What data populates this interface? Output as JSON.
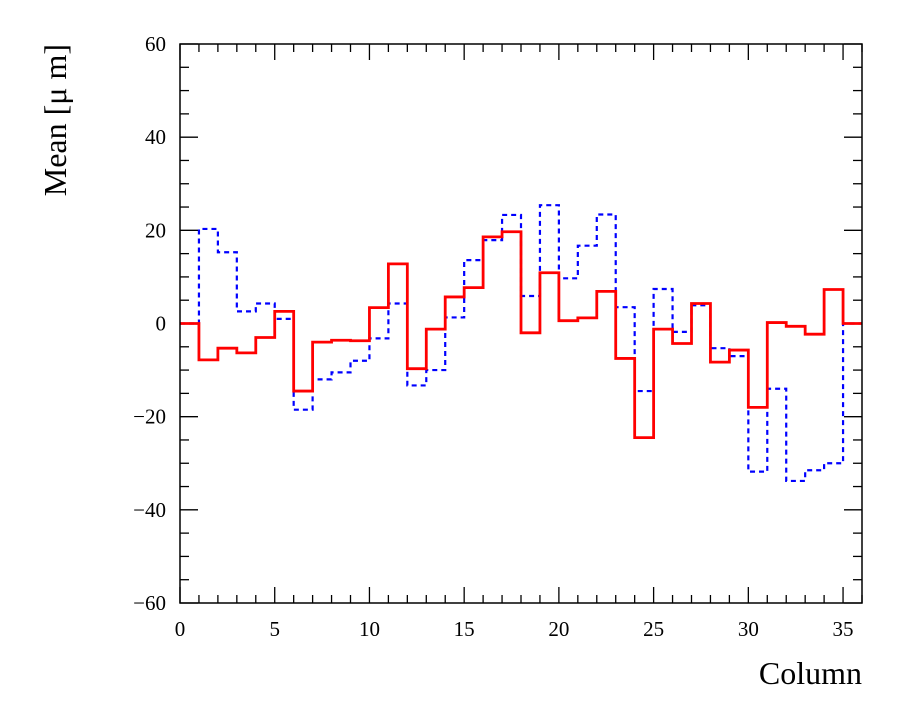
{
  "chart_data": {
    "type": "line",
    "subtype": "step-histogram",
    "title": "",
    "xlabel": "Column",
    "ylabel": "Mean [μ m]",
    "xlim": [
      0,
      36
    ],
    "ylim": [
      -60,
      60
    ],
    "x_ticks": [
      0,
      5,
      10,
      15,
      20,
      25,
      30,
      35
    ],
    "y_ticks": [
      -60,
      -40,
      -20,
      0,
      20,
      40,
      60
    ],
    "grid": false,
    "legend": "none",
    "bin_edges": [
      0,
      1,
      2,
      3,
      4,
      5,
      6,
      7,
      8,
      9,
      10,
      11,
      12,
      13,
      14,
      15,
      16,
      17,
      18,
      19,
      20,
      21,
      22,
      23,
      24,
      25,
      26,
      27,
      28,
      29,
      30,
      31,
      32,
      33,
      34,
      35,
      36
    ],
    "series": [
      {
        "style": "solid",
        "color": "#ff0000",
        "values": [
          0,
          -7.8,
          -5.3,
          -6.3,
          -3.0,
          2.6,
          -14.5,
          -4.0,
          -3.6,
          -3.7,
          3.4,
          12.8,
          -9.7,
          -1.2,
          5.7,
          7.7,
          18.6,
          19.7,
          -2.0,
          10.9,
          0.6,
          1.2,
          6.9,
          -7.5,
          -24.5,
          -1.2,
          -4.3,
          4.3,
          -8.3,
          -5.7,
          -18.0,
          0.2,
          -0.6,
          -2.3,
          7.3,
          0
        ]
      },
      {
        "style": "dotted",
        "color": "#0000ff",
        "values": [
          0,
          20.3,
          15.3,
          2.6,
          4.3,
          1.0,
          -18.5,
          -12.0,
          -10.5,
          -8.0,
          -3.2,
          4.3,
          -13.3,
          -10.0,
          1.3,
          13.6,
          17.9,
          23.3,
          5.9,
          25.4,
          9.7,
          16.7,
          23.4,
          3.5,
          -14.5,
          7.4,
          -1.8,
          3.9,
          -5.3,
          -7.0,
          -31.8,
          -14.0,
          -33.8,
          -31.5,
          -30.0,
          0
        ]
      }
    ]
  },
  "colors": {
    "background": "#ffffff",
    "axis": "#000000"
  }
}
